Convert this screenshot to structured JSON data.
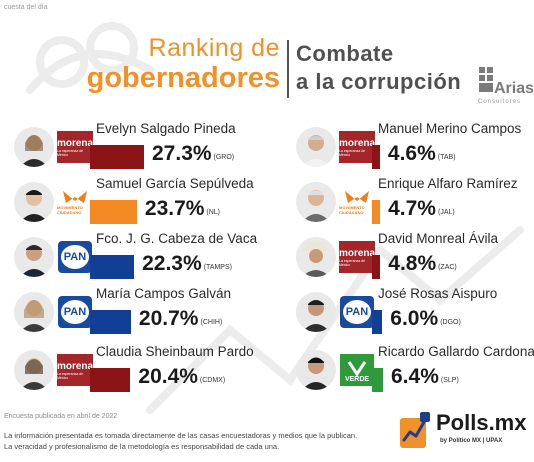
{
  "header": {
    "top_note": "cuesta del día",
    "title_line1": "Ranking de",
    "title_line2": "gobernadores",
    "subtitle_line1": "Combate",
    "subtitle_line2": "a la corrupción",
    "brand": "Arias",
    "brand_sub": "Consultores"
  },
  "colors": {
    "accent": "#f0912a",
    "morena": "#8b1516",
    "movimiento_ciudadano": "#f58a24",
    "pan": "#123f96",
    "pvem": "#2e9a3a"
  },
  "chart_data": {
    "type": "bar",
    "title": "Ranking de gobernadores",
    "subtitle": "Combate a la corrupción",
    "unit": "%",
    "categories": [
      "Evelyn Salgado Pineda",
      "Samuel García Sepúlveda",
      "Fco. J. G. Cabeza de Vaca",
      "María Campos Galván",
      "Claudia Sheinbaum Pardo",
      "Manuel Merino Campos",
      "Enrique Alfaro Ramírez",
      "David Monreal Ávila",
      "José Rosas Aispuro",
      "Ricardo Gallardo Cardona"
    ],
    "values": [
      27.3,
      23.7,
      22.3,
      20.7,
      20.4,
      4.6,
      4.7,
      4.8,
      6.0,
      6.4
    ],
    "items": [
      {
        "name": "Evelyn Salgado Pineda",
        "value": 27.3,
        "value_label": "27.3%",
        "state": "(GRO)",
        "party": "morena",
        "party_icon": "morena-logo-icon",
        "color": "#8b1516"
      },
      {
        "name": "Samuel García Sepúlveda",
        "value": 23.7,
        "value_label": "23.7%",
        "state": "(NL)",
        "party": "Movimiento Ciudadano",
        "party_icon": "movimiento-ciudadano-logo-icon",
        "color": "#f58a24"
      },
      {
        "name": "Fco. J. G. Cabeza de Vaca",
        "value": 22.3,
        "value_label": "22.3%",
        "state": "(TAMPS)",
        "party": "PAN",
        "party_icon": "pan-logo-icon",
        "color": "#123f96"
      },
      {
        "name": "María Campos Galván",
        "value": 20.7,
        "value_label": "20.7%",
        "state": "(CHIH)",
        "party": "PAN",
        "party_icon": "pan-logo-icon",
        "color": "#123f96"
      },
      {
        "name": "Claudia Sheinbaum Pardo",
        "value": 20.4,
        "value_label": "20.4%",
        "state": "(CDMX)",
        "party": "morena",
        "party_icon": "morena-logo-icon",
        "color": "#8b1516"
      },
      {
        "name": "Manuel Merino Campos",
        "value": 4.6,
        "value_label": "4.6%",
        "state": "(TAB)",
        "party": "morena",
        "party_icon": "morena-logo-icon",
        "color": "#8b1516"
      },
      {
        "name": "Enrique Alfaro Ramírez",
        "value": 4.7,
        "value_label": "4.7%",
        "state": "(JAL)",
        "party": "Movimiento Ciudadano",
        "party_icon": "movimiento-ciudadano-logo-icon",
        "color": "#f58a24"
      },
      {
        "name": "David Monreal Ávila",
        "value": 4.8,
        "value_label": "4.8%",
        "state": "(ZAC)",
        "party": "morena",
        "party_icon": "morena-logo-icon",
        "color": "#8b1516"
      },
      {
        "name": "José Rosas Aispuro",
        "value": 6.0,
        "value_label": "6.0%",
        "state": "(DGO)",
        "party": "PAN",
        "party_icon": "pan-logo-icon",
        "color": "#123f96"
      },
      {
        "name": "Ricardo Gallardo Cardona",
        "value": 6.4,
        "value_label": "6.4%",
        "state": "(SLP)",
        "party": "VERDE",
        "party_icon": "pvem-logo-icon",
        "color": "#2e9a3a"
      }
    ]
  },
  "party_logo_text": {
    "morena": "morena",
    "morena_sub": "La esperanza de México",
    "mc": "MOVIMIENTO CIUDADANO",
    "pan": "PAN",
    "verde": "VERDE"
  },
  "footer": {
    "published": "Encuesta publicada en abril de 2022",
    "line1": "La información presentada es tomada directamente de las casas encuestadoras y medios que la publican.",
    "line2": "La veracidad y profesionalismo de la metodología es responsabilidad de cada una.",
    "polls_word": "Polls.mx",
    "polls_by": "by Político MX | UPAX"
  }
}
